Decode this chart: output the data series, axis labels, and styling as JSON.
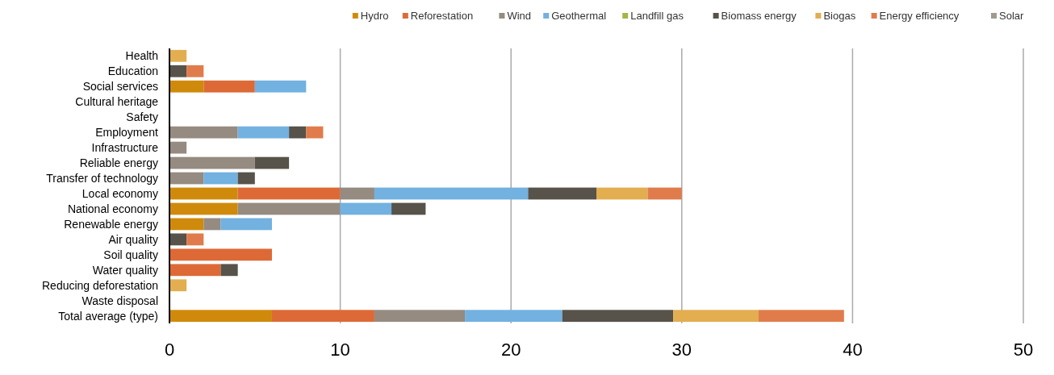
{
  "chart_data": {
    "type": "bar",
    "orientation": "horizontal",
    "stacked": true,
    "legend": "top right",
    "grid": "x",
    "categories": [
      "Health",
      "Education",
      "Social services",
      "Cultural heritage",
      "Safety",
      "Employment",
      "Infrastructure",
      "Reliable energy",
      "Transfer of technology",
      "Local economy",
      "National economy",
      "Renewable energy",
      "Air quality",
      "Soil quality",
      "Water quality",
      "Reducing deforestation",
      "Waste disposal",
      "Total average (type)"
    ],
    "xlim": [
      0,
      50
    ],
    "xticks": [
      0,
      10,
      20,
      30,
      40,
      50
    ],
    "series": [
      {
        "name": "Hydro",
        "color": "#d08a0b",
        "values": [
          0,
          0,
          2,
          0,
          0,
          0,
          0,
          0,
          0,
          4,
          4,
          2,
          0,
          0,
          0,
          0,
          0,
          6
        ]
      },
      {
        "name": "Reforestation",
        "color": "#dd6a36",
        "values": [
          0,
          0,
          3,
          0,
          0,
          0,
          0,
          0,
          0,
          6,
          0,
          0,
          0,
          6,
          3,
          0,
          0,
          6
        ]
      },
      {
        "name": "Wind",
        "color": "#958b81",
        "values": [
          0,
          0,
          0,
          0,
          0,
          4,
          1,
          5,
          2,
          2,
          6,
          1,
          0,
          0,
          0,
          0,
          0,
          5.3
        ]
      },
      {
        "name": "Geothermal",
        "color": "#72b1e0",
        "values": [
          0,
          0,
          3,
          0,
          0,
          3,
          0,
          0,
          2,
          9,
          3,
          3,
          0,
          0,
          0,
          0,
          0,
          5.7
        ]
      },
      {
        "name": "Landfill gas",
        "color": "#a5b548",
        "values": [
          0,
          0,
          0,
          0,
          0,
          0,
          0,
          0,
          0,
          0,
          0,
          0,
          0,
          0,
          0,
          0,
          0,
          0
        ]
      },
      {
        "name": "Biomass energy",
        "color": "#57524a",
        "values": [
          0,
          1,
          0,
          0,
          0,
          1,
          0,
          2,
          1,
          4,
          2,
          0,
          1,
          0,
          1,
          0,
          0,
          6.5
        ]
      },
      {
        "name": "Biogas",
        "color": "#e2ae50",
        "values": [
          1,
          0,
          0,
          0,
          0,
          0,
          0,
          0,
          0,
          3,
          0,
          0,
          0,
          0,
          0,
          1,
          0,
          5
        ]
      },
      {
        "name": "Energy efficiency",
        "color": "#e07c4c",
        "values": [
          0,
          1,
          0,
          0,
          0,
          1,
          0,
          0,
          0,
          2,
          0,
          0,
          1,
          0,
          0,
          0,
          0,
          5
        ]
      },
      {
        "name": "Solar",
        "color": "#a09a92",
        "values": [
          0,
          0,
          0,
          0,
          0,
          0,
          0,
          0,
          0,
          0,
          0,
          0,
          0,
          0,
          0,
          0,
          0,
          0
        ]
      }
    ]
  }
}
